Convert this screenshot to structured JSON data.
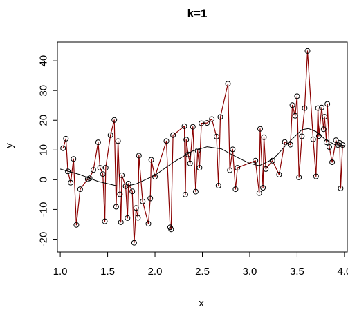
{
  "chart_data": {
    "type": "scatter",
    "title": "k=1",
    "xlabel": "x",
    "ylabel": "y",
    "xlim": [
      0.97,
      4.03
    ],
    "ylim": [
      -24.3,
      46.3
    ],
    "xticks": [
      "1.0",
      "1.5",
      "2.0",
      "2.5",
      "3.0",
      "3.5",
      "4.0"
    ],
    "yticks": [
      "-20",
      "-10",
      "0",
      "10",
      "20",
      "30",
      "40"
    ],
    "colors": {
      "points": "#000000",
      "knn_fit": "#8b0000",
      "smooth_curve": "#000000",
      "axes": "#000000"
    },
    "points": [
      [
        1.03,
        10.6
      ],
      [
        1.06,
        13.8
      ],
      [
        1.08,
        2.8
      ],
      [
        1.11,
        -1.0
      ],
      [
        1.14,
        7.0
      ],
      [
        1.17,
        -15.2
      ],
      [
        1.21,
        -3.2
      ],
      [
        1.29,
        0.2
      ],
      [
        1.31,
        0.5
      ],
      [
        1.35,
        3.3
      ],
      [
        1.4,
        12.6
      ],
      [
        1.42,
        4.0
      ],
      [
        1.45,
        1.9
      ],
      [
        1.47,
        -14.0
      ],
      [
        1.48,
        4.0
      ],
      [
        1.53,
        15.0
      ],
      [
        1.57,
        20.1
      ],
      [
        1.59,
        -9.1
      ],
      [
        1.61,
        13.0
      ],
      [
        1.63,
        -4.9
      ],
      [
        1.64,
        -14.3
      ],
      [
        1.65,
        1.5
      ],
      [
        1.69,
        -2.2
      ],
      [
        1.71,
        -12.9
      ],
      [
        1.72,
        -1.3
      ],
      [
        1.76,
        -3.9
      ],
      [
        1.78,
        -21.2
      ],
      [
        1.8,
        -9.5
      ],
      [
        1.82,
        -12.8
      ],
      [
        1.83,
        8.1
      ],
      [
        1.87,
        -7.3
      ],
      [
        1.93,
        -14.8
      ],
      [
        1.95,
        -6.3
      ],
      [
        1.96,
        6.7
      ],
      [
        2.0,
        1.0
      ],
      [
        2.12,
        13.0
      ],
      [
        2.16,
        -16.0
      ],
      [
        2.17,
        -16.7
      ],
      [
        2.19,
        15.0
      ],
      [
        2.31,
        18.0
      ],
      [
        2.32,
        -5.0
      ],
      [
        2.33,
        13.5
      ],
      [
        2.35,
        8.5
      ],
      [
        2.37,
        5.5
      ],
      [
        2.4,
        17.8
      ],
      [
        2.43,
        -4.0
      ],
      [
        2.45,
        9.8
      ],
      [
        2.47,
        4.0
      ],
      [
        2.49,
        19.0
      ],
      [
        2.55,
        19.1
      ],
      [
        2.6,
        20.4
      ],
      [
        2.65,
        14.5
      ],
      [
        2.67,
        -2.0
      ],
      [
        2.69,
        21.1
      ],
      [
        2.77,
        32.3
      ],
      [
        2.79,
        3.2
      ],
      [
        2.82,
        10.2
      ],
      [
        2.85,
        -3.2
      ],
      [
        2.87,
        4.0
      ],
      [
        3.06,
        6.4
      ],
      [
        3.1,
        -4.5
      ],
      [
        3.11,
        17.1
      ],
      [
        3.14,
        -2.7
      ],
      [
        3.15,
        14.3
      ],
      [
        3.17,
        3.6
      ],
      [
        3.24,
        6.4
      ],
      [
        3.31,
        1.7
      ],
      [
        3.37,
        12.7
      ],
      [
        3.43,
        11.8
      ],
      [
        3.45,
        25.1
      ],
      [
        3.48,
        21.5
      ],
      [
        3.5,
        28.1
      ],
      [
        3.52,
        0.8
      ],
      [
        3.55,
        14.6
      ],
      [
        3.58,
        24.1
      ],
      [
        3.61,
        43.3
      ],
      [
        3.67,
        13.6
      ],
      [
        3.7,
        1.1
      ],
      [
        3.72,
        24.1
      ],
      [
        3.73,
        14.7
      ],
      [
        3.76,
        24.3
      ],
      [
        3.78,
        17.0
      ],
      [
        3.79,
        21.2
      ],
      [
        3.81,
        12.6
      ],
      [
        3.82,
        25.5
      ],
      [
        3.84,
        11.0
      ],
      [
        3.87,
        5.9
      ],
      [
        3.91,
        13.3
      ],
      [
        3.93,
        11.7
      ],
      [
        3.95,
        12.4
      ],
      [
        3.96,
        -2.9
      ],
      [
        3.98,
        11.7
      ]
    ],
    "smooth_curve": [
      [
        1.0,
        3.6
      ],
      [
        1.2,
        1.8
      ],
      [
        1.4,
        -0.6
      ],
      [
        1.6,
        -2.1
      ],
      [
        1.7,
        -2.2
      ],
      [
        1.8,
        -1.4
      ],
      [
        2.0,
        1.5
      ],
      [
        2.2,
        6.0
      ],
      [
        2.4,
        9.7
      ],
      [
        2.55,
        11.1
      ],
      [
        2.7,
        10.4
      ],
      [
        2.85,
        7.8
      ],
      [
        3.0,
        5.5
      ],
      [
        3.1,
        4.7
      ],
      [
        3.25,
        7.0
      ],
      [
        3.4,
        12.2
      ],
      [
        3.55,
        16.8
      ],
      [
        3.62,
        17.2
      ],
      [
        3.7,
        16.2
      ],
      [
        3.8,
        13.5
      ],
      [
        3.9,
        11.8
      ],
      [
        4.0,
        11.5
      ]
    ]
  }
}
